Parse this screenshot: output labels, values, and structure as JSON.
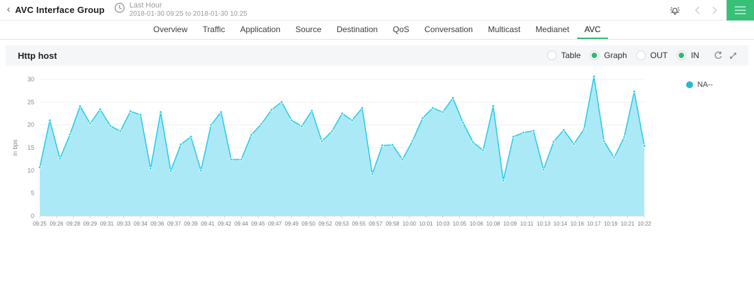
{
  "header": {
    "title": "AVC Interface Group",
    "back_icon": "‹",
    "time_range_label": "Last Hour",
    "time_range_value": "2018-01-30 09:25 to 2018-01-30 10:25"
  },
  "tabs": {
    "items": [
      {
        "label": "Overview",
        "active": false
      },
      {
        "label": "Traffic",
        "active": false
      },
      {
        "label": "Application",
        "active": false
      },
      {
        "label": "Source",
        "active": false
      },
      {
        "label": "Destination",
        "active": false
      },
      {
        "label": "QoS",
        "active": false
      },
      {
        "label": "Conversation",
        "active": false
      },
      {
        "label": "Multicast",
        "active": false
      },
      {
        "label": "Medianet",
        "active": false
      },
      {
        "label": "AVC",
        "active": true
      }
    ]
  },
  "panel": {
    "title": "Http host",
    "toggles": [
      {
        "label": "Table",
        "selected": false
      },
      {
        "label": "Graph",
        "selected": true
      },
      {
        "label": "OUT",
        "selected": false
      },
      {
        "label": "IN",
        "selected": true
      }
    ]
  },
  "icons": [
    "back-icon",
    "clock-icon",
    "alert-bell-icon",
    "nav-prev-icon",
    "nav-next-icon",
    "menu-icon",
    "refresh-icon",
    "expand-icon",
    "legend-dot"
  ],
  "colors": {
    "accent_green": "#2abd72",
    "menu_button_green": "#38bf78",
    "chart_line": "#2bcbe9",
    "chart_fill": "#ace9f6",
    "legend_dot": "#25b8d9"
  },
  "chart_data": {
    "type": "area",
    "title": "Http host",
    "xlabel": "",
    "ylabel": "in bps",
    "ylim": [
      0,
      30
    ],
    "y_ticks": [
      0,
      5,
      10,
      15,
      20,
      25,
      30
    ],
    "grid": true,
    "legend_position": "right",
    "x_tick_labels": [
      "09:25",
      "09:26",
      "09:28",
      "09:29",
      "09:31",
      "09:33",
      "09:34",
      "09:36",
      "09:37",
      "09:39",
      "09:41",
      "09:42",
      "09:44",
      "09:45",
      "09:47",
      "09:49",
      "09:50",
      "09:52",
      "09:53",
      "09:55",
      "09:57",
      "09:58",
      "10:00",
      "10:01",
      "10:03",
      "10:05",
      "10:06",
      "10:08",
      "10:09",
      "10:11",
      "10:13",
      "10:14",
      "10:16",
      "10:17",
      "10:19",
      "10:21",
      "10:22"
    ],
    "series": [
      {
        "name": "NA--",
        "color": "#2bcbe9",
        "fill": "#ace9f6",
        "values": [
          10.7,
          21,
          12.6,
          17.9,
          24.1,
          20.3,
          23.4,
          19.8,
          18.6,
          23,
          22.2,
          10.4,
          22.8,
          9.9,
          15.7,
          17.4,
          10,
          20,
          22.8,
          12.4,
          12.4,
          17.8,
          20.2,
          23.3,
          25,
          21,
          19.7,
          23.1,
          16.4,
          18.6,
          22.5,
          21,
          23.7,
          9.2,
          15.5,
          15.6,
          12.4,
          16.5,
          21.5,
          23.7,
          22.8,
          25.9,
          20.5,
          16.2,
          14.4,
          24.1,
          7.8,
          17.4,
          18.3,
          18.7,
          10.2,
          16.3,
          18.9,
          15.8,
          19,
          30.6,
          16.4,
          12.8,
          17.3,
          27.3,
          15.4
        ]
      }
    ]
  }
}
